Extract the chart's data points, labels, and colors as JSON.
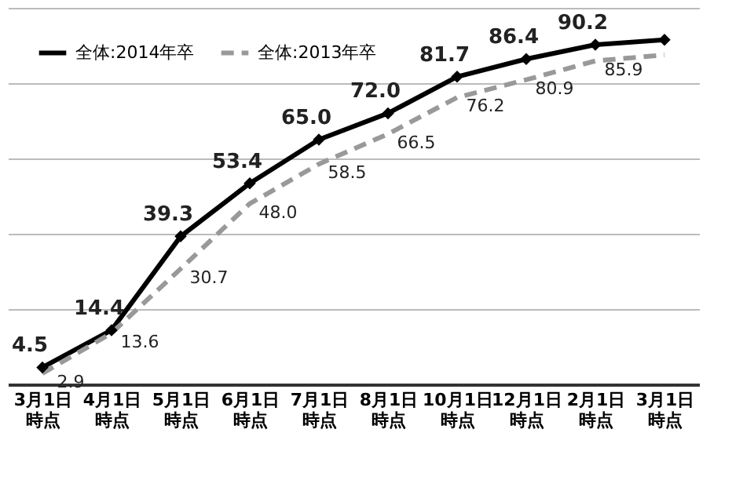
{
  "chart_data": {
    "type": "line",
    "categories": [
      "3月1日時点",
      "4月1日時点",
      "5月1日時点",
      "6月1日時点",
      "7月1日時点",
      "8月1日時点",
      "10月1日時点",
      "12月1日時点",
      "2月1日時点",
      "3月1日時点"
    ],
    "series": [
      {
        "name": "全体:2014年卒",
        "color": "#000000",
        "line_style": "solid",
        "marker": "diamond",
        "values": [
          4.5,
          14.4,
          39.3,
          53.4,
          65.0,
          72.0,
          81.7,
          86.4,
          90.2,
          91.5
        ],
        "value_labels": [
          "4.5",
          "14.4",
          "39.3",
          "53.4",
          "65.0",
          "72.0",
          "81.7",
          "86.4",
          "90.2",
          null
        ]
      },
      {
        "name": "全体:2013年卒",
        "color": "#999999",
        "line_style": "dashed",
        "marker": "none",
        "values": [
          2.9,
          13.6,
          30.7,
          48.0,
          58.5,
          66.5,
          76.2,
          80.9,
          85.9,
          87.5
        ],
        "value_labels": [
          "2.9",
          "13.6",
          "30.7",
          "48.0",
          "58.5",
          "66.5",
          "76.2",
          "80.9",
          "85.9",
          null
        ]
      }
    ],
    "ylim": [
      0,
      100
    ],
    "yticks": [
      {
        "value": 20,
        "label": null
      },
      {
        "value": 40,
        "label": null
      },
      {
        "value": 60,
        "label": null
      },
      {
        "value": 80,
        "label": null
      },
      {
        "value": 100,
        "label": null
      }
    ],
    "grid": "y",
    "legend": "top left",
    "tick_labels": "x"
  }
}
